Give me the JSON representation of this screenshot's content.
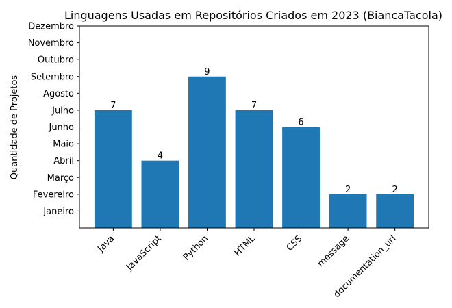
{
  "chart_data": {
    "type": "bar",
    "title": "Linguagens Usadas em Repositórios Criados em 2023 (BiancaTacola)",
    "xlabel": "",
    "ylabel": "Quantidade de Projetos",
    "categories": [
      "Java",
      "JavaScript",
      "Python",
      "HTML",
      "CSS",
      "message",
      "documentation_url"
    ],
    "values": [
      7,
      4,
      9,
      7,
      6,
      2,
      2
    ],
    "y_tick_labels": [
      "Janeiro",
      "Fevereiro",
      "Março",
      "Abril",
      "Maio",
      "Junho",
      "Julho",
      "Agosto",
      "Setembro",
      "Outubro",
      "Novembro",
      "Dezembro"
    ],
    "ylim": [
      0,
      12
    ],
    "bar_color": "#1f77b4",
    "grid": false
  }
}
